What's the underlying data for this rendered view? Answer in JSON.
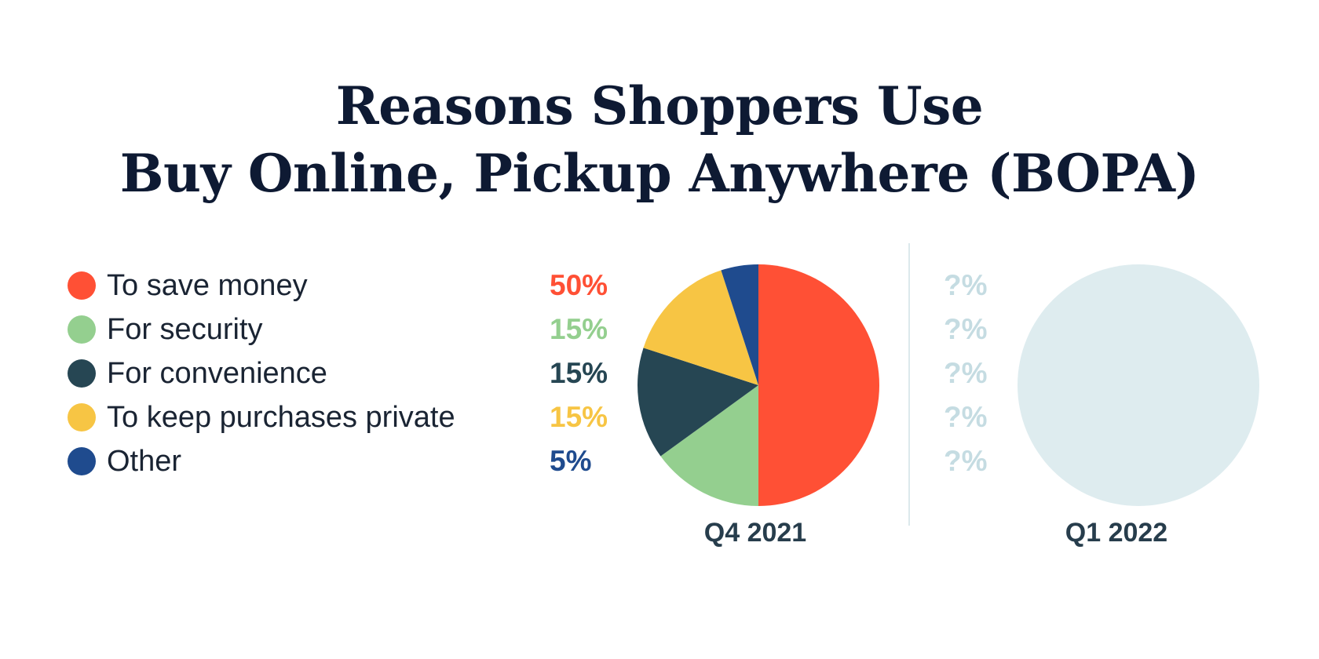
{
  "title": {
    "line1": "Reasons Shoppers Use",
    "line2": "Buy Online, Pickup Anywhere (BOPA)"
  },
  "chart_data": [
    {
      "type": "pie",
      "title": "Q4 2021",
      "categories": [
        "To save money",
        "For security",
        "For convenience",
        "To keep purchases private",
        "Other"
      ],
      "values": [
        50,
        15,
        15,
        15,
        5
      ],
      "labels": [
        "50%",
        "15%",
        "15%",
        "15%",
        "5%"
      ],
      "colors": [
        "#ff5035",
        "#94cf8f",
        "#264653",
        "#f7c544",
        "#1f4b8e"
      ],
      "legend": "left"
    },
    {
      "type": "pie",
      "title": "Q1 2022",
      "categories": [
        "To save money",
        "For security",
        "For convenience",
        "To keep purchases private",
        "Other"
      ],
      "labels": [
        "?%",
        "?%",
        "?%",
        "?%",
        "?%"
      ],
      "fill_color": "#deecef",
      "label_color": "#c5dce2"
    }
  ],
  "colors": {
    "title": "#0e1a33",
    "period_label": "#273d4c",
    "divider": "#dce9ec"
  }
}
